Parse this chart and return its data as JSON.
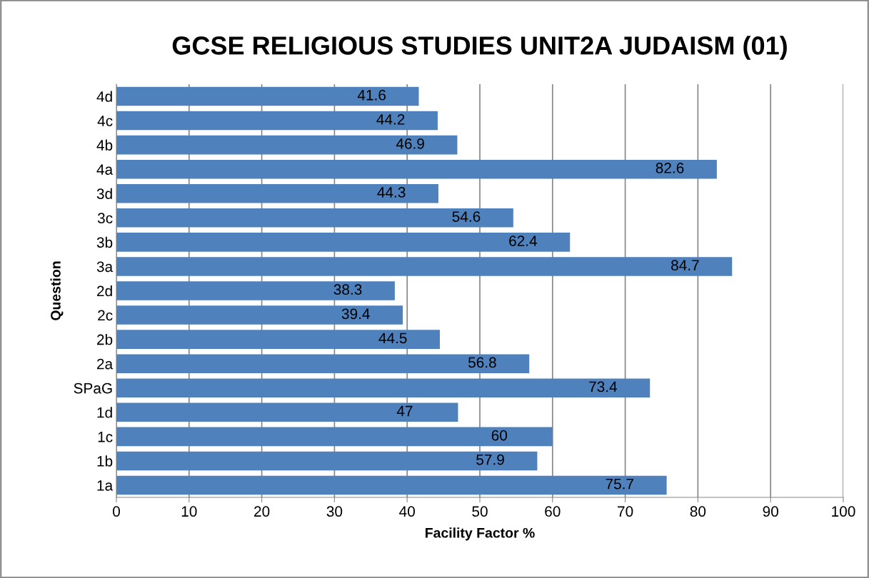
{
  "chart_data": {
    "type": "bar",
    "orientation": "horizontal",
    "title": "GCSE RELIGIOUS STUDIES UNIT2A JUDAISM (01)",
    "xlabel": "Facility Factor %",
    "ylabel": "Question",
    "categories": [
      "4d",
      "4c",
      "4b",
      "4a",
      "3d",
      "3c",
      "3b",
      "3a",
      "2d",
      "2c",
      "2b",
      "2a",
      "SPaG",
      "1d",
      "1c",
      "1b",
      "1a"
    ],
    "values": [
      41.6,
      44.2,
      46.9,
      82.6,
      44.3,
      54.6,
      62.4,
      84.7,
      38.3,
      39.4,
      44.5,
      56.8,
      73.4,
      47,
      60,
      57.9,
      75.7
    ],
    "color": "#4f81bd",
    "xlim": [
      0,
      100
    ],
    "xticks": [
      0,
      10,
      20,
      30,
      40,
      50,
      60,
      70,
      80,
      90,
      100
    ],
    "grid": "x",
    "data_labels": true
  }
}
